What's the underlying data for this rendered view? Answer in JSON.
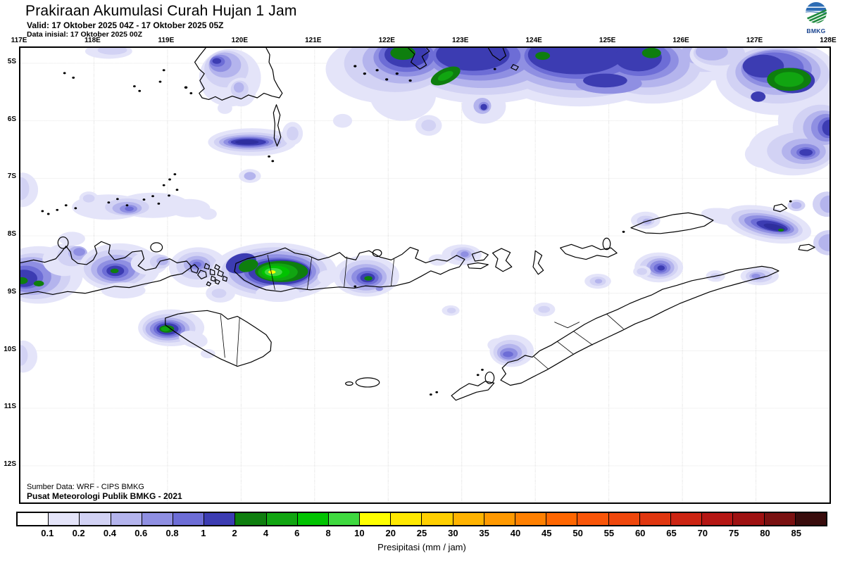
{
  "header": {
    "title": "Prakiraan Akumulasi Curah Hujan 1 Jam",
    "valid": "Valid: 17 Oktober 2025 04Z - 17 Oktober 2025 05Z",
    "init": "Data inisial: 17 Oktober 2025 00Z",
    "logo_text": "BMKG"
  },
  "map": {
    "lon_labels": [
      "117E",
      "118E",
      "119E",
      "120E",
      "121E",
      "122E",
      "123E",
      "124E",
      "125E",
      "126E",
      "127E",
      "128E"
    ],
    "lat_labels": [
      "5S",
      "6S",
      "7S",
      "8S",
      "9S",
      "10S",
      "11S",
      "12S"
    ],
    "source_line1": "Sumber Data: WRF - CIPS BMKG",
    "source_line2": "Pusat Meteorologi Publik BMKG - 2021"
  },
  "colorbar": {
    "caption": "Presipitasi (mm / jam)",
    "labels": [
      "0.1",
      "0.2",
      "0.4",
      "0.6",
      "0.8",
      "1",
      "2",
      "4",
      "6",
      "8",
      "10",
      "20",
      "25",
      "30",
      "35",
      "40",
      "45",
      "50",
      "55",
      "60",
      "65",
      "70",
      "75",
      "80",
      "85"
    ],
    "colors": [
      "#ffffff",
      "#e4e4f9",
      "#d2d2f4",
      "#b4b4ed",
      "#8f8fe2",
      "#6d6dd6",
      "#3c3cb2",
      "#0e7e0e",
      "#11a511",
      "#00c300",
      "#3fd93f",
      "#ffff00",
      "#ffe800",
      "#ffcf00",
      "#ffb300",
      "#ff9900",
      "#ff8000",
      "#ff6600",
      "#f95508",
      "#ef470c",
      "#e0360f",
      "#cc2412",
      "#b51613",
      "#9e1111",
      "#7a1111",
      "#390c0c"
    ]
  },
  "colors": {
    "coastline": "#000000",
    "gridline": "#a8a8a8",
    "logo_blue": "#2e6db4",
    "logo_green": "#1f8a3e"
  }
}
